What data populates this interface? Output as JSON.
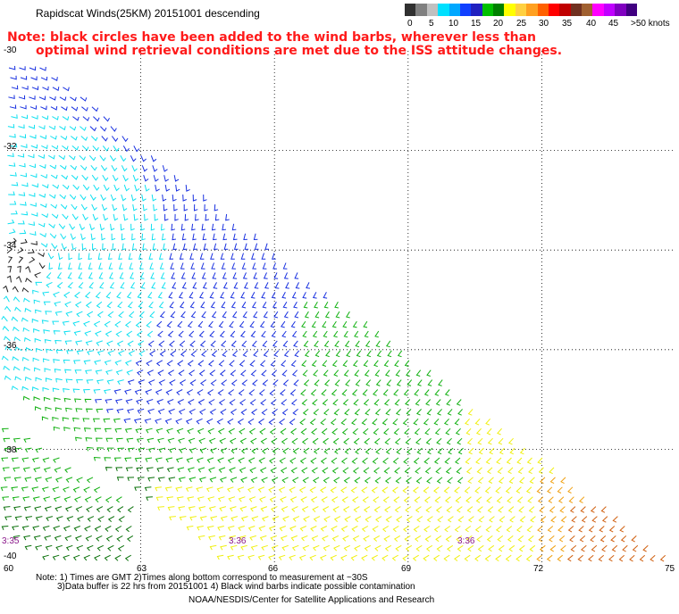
{
  "title": "Rapidscat Winds(25KM) 20151001 descending",
  "note_line1": "Note: black circles have been added to the wind barbs, wherever less than",
  "note_line2": "optimal wind retrieval conditions are met due to the ISS attitude changes.",
  "colorbar": {
    "labels": [
      "0",
      "5",
      "10",
      "15",
      "20",
      "25",
      "30",
      "35",
      "40",
      "45",
      ">50 knots"
    ],
    "colors": [
      "#303030",
      "#808080",
      "#c0c0c0",
      "#00e0ff",
      "#00a8ff",
      "#1040ff",
      "#2020c0",
      "#00c000",
      "#008000",
      "#ffff00",
      "#ffd040",
      "#ffa020",
      "#ff6000",
      "#ff0000",
      "#c00000",
      "#703020",
      "#a06030",
      "#ff00ff",
      "#c000ff",
      "#8000c0",
      "#400080"
    ]
  },
  "lat_labels": [
    "-30",
    "-32",
    "-34",
    "-36",
    "-38",
    "-40"
  ],
  "lon_labels": [
    "60",
    "63",
    "66",
    "69",
    "72",
    "75"
  ],
  "time_labels": [
    "3:35",
    "3:36",
    "3:36"
  ],
  "footnote_line1": "Note: 1) Times are GMT 2)Times along bottom correspond to measurement at ~30S",
  "footnote_line2": "3)Data buffer is 22 hrs from 20151001 4) Black wind barbs indicate possible contamination",
  "credit": "NOAA/NESDIS/Center for Satellite Applications and Research",
  "map": {
    "lat_range": [
      -40,
      -30
    ],
    "lon_range": [
      60,
      75
    ],
    "grid": "dotted",
    "speed_colors": {
      "black": "#202020",
      "cyan": "#10e0f0",
      "blue": "#1830e0",
      "green": "#10b010",
      "darkgreen": "#087008",
      "yellow": "#f0f010",
      "orange": "#f0a010",
      "darkorange": "#d06010"
    }
  }
}
